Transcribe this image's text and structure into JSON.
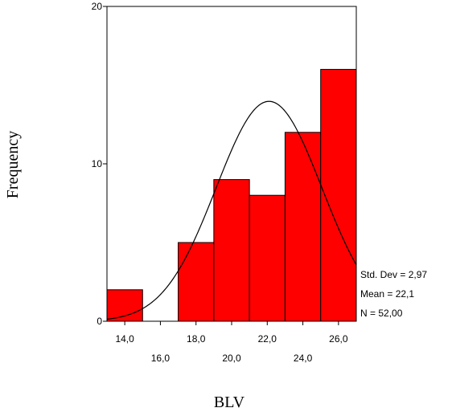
{
  "chart_data": {
    "type": "bar",
    "subtype": "histogram",
    "xlabel": "BLV",
    "ylabel": "Frequency",
    "bin_width": 2,
    "bins": [
      {
        "x0": 13,
        "x1": 15,
        "count": 2
      },
      {
        "x0": 15,
        "x1": 17,
        "count": 0
      },
      {
        "x0": 17,
        "x1": 19,
        "count": 5
      },
      {
        "x0": 19,
        "x1": 21,
        "count": 9
      },
      {
        "x0": 21,
        "x1": 23,
        "count": 8
      },
      {
        "x0": 23,
        "x1": 25,
        "count": 12
      },
      {
        "x0": 25,
        "x1": 27,
        "count": 16
      }
    ],
    "x_ticks": [
      {
        "value": 14,
        "label": "14,0",
        "row": 1
      },
      {
        "value": 16,
        "label": "16,0",
        "row": 2
      },
      {
        "value": 18,
        "label": "18,0",
        "row": 1
      },
      {
        "value": 20,
        "label": "20,0",
        "row": 2
      },
      {
        "value": 22,
        "label": "22,0",
        "row": 1
      },
      {
        "value": 24,
        "label": "24,0",
        "row": 2
      },
      {
        "value": 26,
        "label": "26,0",
        "row": 1
      }
    ],
    "y_ticks": [
      {
        "value": 0,
        "label": "0"
      },
      {
        "value": 10,
        "label": "10"
      },
      {
        "value": 20,
        "label": "20"
      }
    ],
    "xlim": [
      13,
      27
    ],
    "ylim": [
      0,
      20
    ],
    "normal_curve": {
      "mean": 22.1,
      "std": 2.97,
      "n": 52
    },
    "stats": [
      "Std. Dev = 2,97",
      "Mean = 22,1",
      "N = 52,00"
    ],
    "colors": {
      "bar_fill": "#ff0000",
      "bar_stroke": "#000000",
      "curve": "#000000",
      "frame": "#000000"
    },
    "grid": false,
    "legend": "none"
  }
}
